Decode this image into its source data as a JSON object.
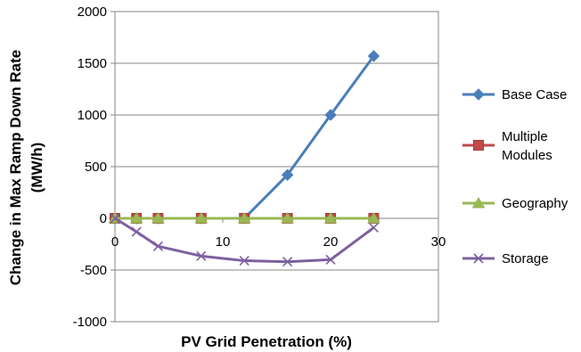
{
  "chart_data": {
    "type": "line",
    "title": "",
    "xlabel": "PV Grid Penetration (%)",
    "ylabel_lines": [
      "Change in Max Ramp Down Rate",
      "(MW/h)"
    ],
    "xlim": [
      0,
      30
    ],
    "ylim": [
      -1000,
      2000
    ],
    "x_ticks": [
      0,
      10,
      20,
      30
    ],
    "y_ticks": [
      2000,
      1500,
      1000,
      500,
      0,
      -500,
      -1000
    ],
    "grid": "horizontal",
    "legend_position": "right",
    "series": [
      {
        "name": "Base Case",
        "color": "#4a7ebb",
        "marker": "diamond",
        "x": [
          0,
          2,
          4,
          8,
          12,
          16,
          20,
          24
        ],
        "y": [
          0,
          0,
          0,
          0,
          0,
          420,
          1000,
          1570
        ]
      },
      {
        "name": "Multiple Modules",
        "legend_lines": [
          "Multiple",
          "Modules"
        ],
        "color": "#be4b48",
        "marker": "square",
        "x": [
          0,
          2,
          4,
          8,
          12,
          16,
          20,
          24
        ],
        "y": [
          0,
          0,
          0,
          0,
          0,
          0,
          0,
          0
        ]
      },
      {
        "name": "Geography",
        "color": "#98b954",
        "marker": "triangle",
        "x": [
          0,
          2,
          4,
          8,
          12,
          16,
          20,
          24
        ],
        "y": [
          0,
          0,
          0,
          0,
          0,
          0,
          0,
          0
        ]
      },
      {
        "name": "Storage",
        "color": "#7d60a0",
        "marker": "x",
        "x": [
          0,
          2,
          4,
          8,
          12,
          16,
          20,
          24
        ],
        "y": [
          0,
          -130,
          -270,
          -365,
          -410,
          -420,
          -400,
          -90
        ]
      }
    ]
  }
}
